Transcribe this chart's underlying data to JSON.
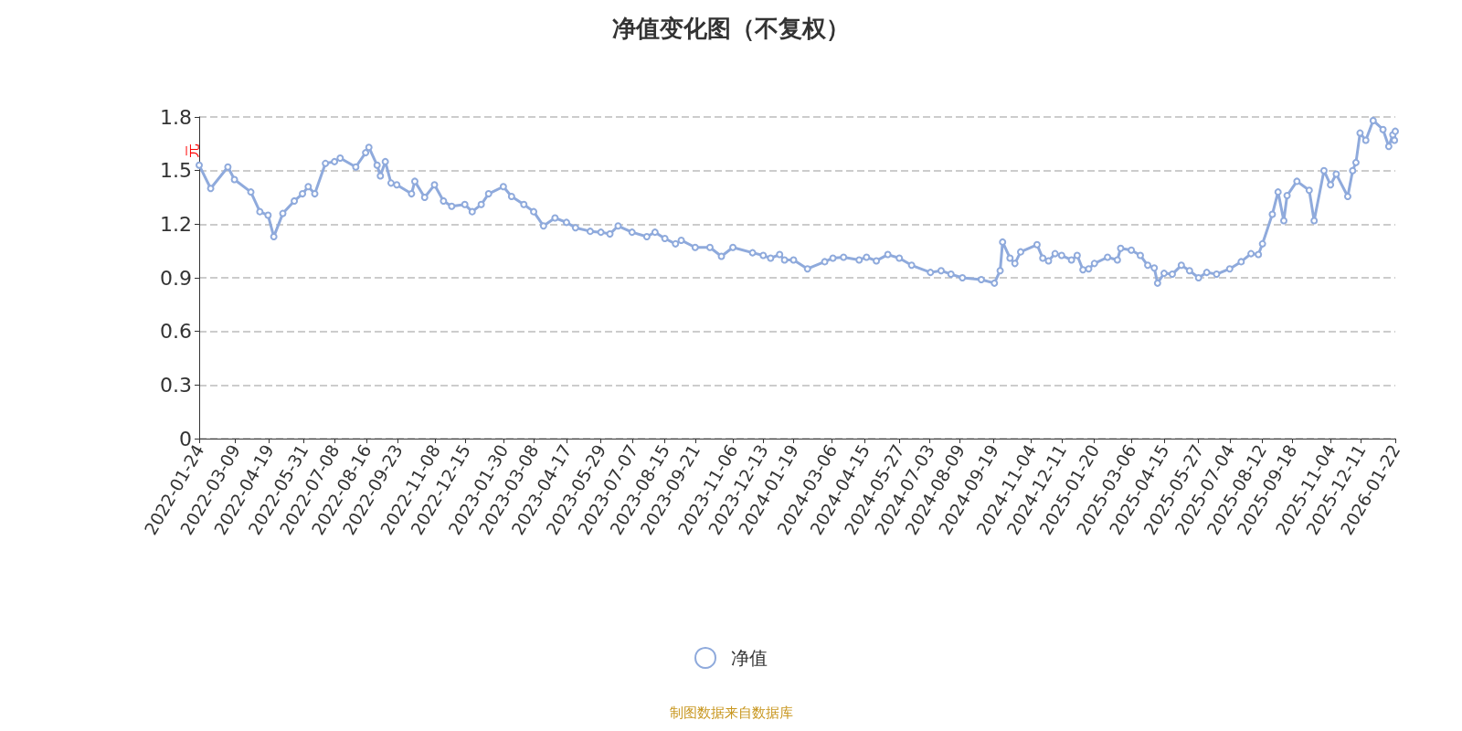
{
  "chart_data": {
    "type": "line",
    "title": "净值变化图（不复权）",
    "ylabel": "元",
    "annotations": [
      "制图数据来自数据库"
    ],
    "legend": "bottom",
    "grid": "y",
    "marker": "circle",
    "line_style": "solid",
    "ylim": [
      0,
      1.8
    ],
    "yticks": [
      0,
      0.3,
      0.6,
      0.9,
      1.2,
      1.5,
      1.8
    ],
    "xlim": [
      "2022-01-24",
      "2026-01-22"
    ],
    "xticks": [
      "2022-01-24",
      "2022-03-09",
      "2022-04-19",
      "2022-05-31",
      "2022-07-08",
      "2022-08-16",
      "2022-09-23",
      "2022-11-08",
      "2022-12-15",
      "2023-01-30",
      "2023-03-08",
      "2023-04-17",
      "2023-05-29",
      "2023-07-07",
      "2023-08-15",
      "2023-09-21",
      "2023-11-06",
      "2023-12-13",
      "2024-01-19",
      "2024-03-06",
      "2024-04-15",
      "2024-05-27",
      "2024-07-03",
      "2024-08-09",
      "2024-09-19",
      "2024-11-04",
      "2024-12-11",
      "2025-01-20",
      "2025-03-06",
      "2025-04-15",
      "2025-05-27",
      "2025-07-04",
      "2025-08-12",
      "2025-09-18",
      "2025-11-04",
      "2025-12-11",
      "2026-01-22"
    ],
    "series": [
      {
        "name": "净值",
        "color": "#8faadc",
        "x": [
          "2022-01-24",
          "2022-02-07",
          "2022-02-28",
          "2022-03-08",
          "2022-03-28",
          "2022-04-08",
          "2022-04-18",
          "2022-04-25",
          "2022-05-06",
          "2022-05-20",
          "2022-05-30",
          "2022-06-06",
          "2022-06-14",
          "2022-06-27",
          "2022-07-08",
          "2022-07-15",
          "2022-08-03",
          "2022-08-15",
          "2022-08-19",
          "2022-08-29",
          "2022-09-02",
          "2022-09-08",
          "2022-09-15",
          "2022-09-22",
          "2022-10-10",
          "2022-10-14",
          "2022-10-26",
          "2022-11-07",
          "2022-11-18",
          "2022-11-28",
          "2022-12-14",
          "2022-12-23",
          "2023-01-03",
          "2023-01-12",
          "2023-01-30",
          "2023-02-09",
          "2023-02-24",
          "2023-03-08",
          "2023-03-20",
          "2023-04-03",
          "2023-04-17",
          "2023-04-28",
          "2023-05-16",
          "2023-05-29",
          "2023-06-09",
          "2023-06-19",
          "2023-07-06",
          "2023-07-24",
          "2023-08-03",
          "2023-08-15",
          "2023-08-28",
          "2023-09-04",
          "2023-09-21",
          "2023-10-09",
          "2023-10-23",
          "2023-11-06",
          "2023-11-30",
          "2023-12-13",
          "2023-12-22",
          "2024-01-02",
          "2024-01-08",
          "2024-01-19",
          "2024-02-05",
          "2024-02-26",
          "2024-03-07",
          "2024-03-20",
          "2024-04-08",
          "2024-04-17",
          "2024-04-29",
          "2024-05-13",
          "2024-05-27",
          "2024-06-11",
          "2024-07-04",
          "2024-07-17",
          "2024-07-29",
          "2024-08-12",
          "2024-09-04",
          "2024-09-20",
          "2024-09-27",
          "2024-09-30",
          "2024-10-09",
          "2024-10-15",
          "2024-10-22",
          "2024-11-11",
          "2024-11-18",
          "2024-11-25",
          "2024-12-03",
          "2024-12-11",
          "2024-12-23",
          "2024-12-30",
          "2025-01-06",
          "2025-01-13",
          "2025-01-20",
          "2025-02-05",
          "2025-02-17",
          "2025-02-21",
          "2025-03-06",
          "2025-03-17",
          "2025-03-26",
          "2025-04-03",
          "2025-04-07",
          "2025-04-15",
          "2025-04-25",
          "2025-05-06",
          "2025-05-16",
          "2025-05-27",
          "2025-06-06",
          "2025-06-18",
          "2025-07-04",
          "2025-07-18",
          "2025-07-30",
          "2025-08-08",
          "2025-08-13",
          "2025-08-25",
          "2025-09-01",
          "2025-09-08",
          "2025-09-12",
          "2025-09-24",
          "2025-10-09",
          "2025-10-15",
          "2025-10-27",
          "2025-11-04",
          "2025-11-11",
          "2025-11-25",
          "2025-12-01",
          "2025-12-05",
          "2025-12-10",
          "2025-12-17",
          "2025-12-26",
          "2026-01-07",
          "2026-01-14",
          "2026-01-19",
          "2026-01-21",
          "2026-01-22"
        ],
        "values": [
          1.53,
          1.4,
          1.52,
          1.45,
          1.38,
          1.27,
          1.25,
          1.13,
          1.26,
          1.33,
          1.37,
          1.41,
          1.37,
          1.54,
          1.55,
          1.57,
          1.52,
          1.6,
          1.63,
          1.53,
          1.47,
          1.55,
          1.43,
          1.42,
          1.37,
          1.44,
          1.35,
          1.42,
          1.33,
          1.3,
          1.31,
          1.27,
          1.31,
          1.37,
          1.41,
          1.355,
          1.31,
          1.27,
          1.19,
          1.235,
          1.21,
          1.18,
          1.16,
          1.155,
          1.145,
          1.19,
          1.155,
          1.13,
          1.155,
          1.12,
          1.09,
          1.11,
          1.07,
          1.07,
          1.02,
          1.07,
          1.04,
          1.025,
          1.01,
          1.03,
          1.0,
          1.0,
          0.95,
          0.99,
          1.01,
          1.015,
          1.0,
          1.015,
          0.995,
          1.03,
          1.01,
          0.97,
          0.93,
          0.94,
          0.92,
          0.9,
          0.89,
          0.87,
          0.94,
          1.1,
          1.01,
          0.98,
          1.045,
          1.085,
          1.01,
          0.995,
          1.035,
          1.025,
          1.0,
          1.025,
          0.945,
          0.95,
          0.98,
          1.015,
          1.0,
          1.065,
          1.055,
          1.025,
          0.97,
          0.955,
          0.87,
          0.925,
          0.92,
          0.97,
          0.94,
          0.9,
          0.93,
          0.92,
          0.95,
          0.99,
          1.035,
          1.03,
          1.09,
          1.255,
          1.38,
          1.22,
          1.36,
          1.44,
          1.39,
          1.22,
          1.5,
          1.42,
          1.48,
          1.355,
          1.5,
          1.545,
          1.71,
          1.67,
          1.78,
          1.73,
          1.635,
          1.7,
          1.67,
          1.72
        ]
      }
    ]
  }
}
